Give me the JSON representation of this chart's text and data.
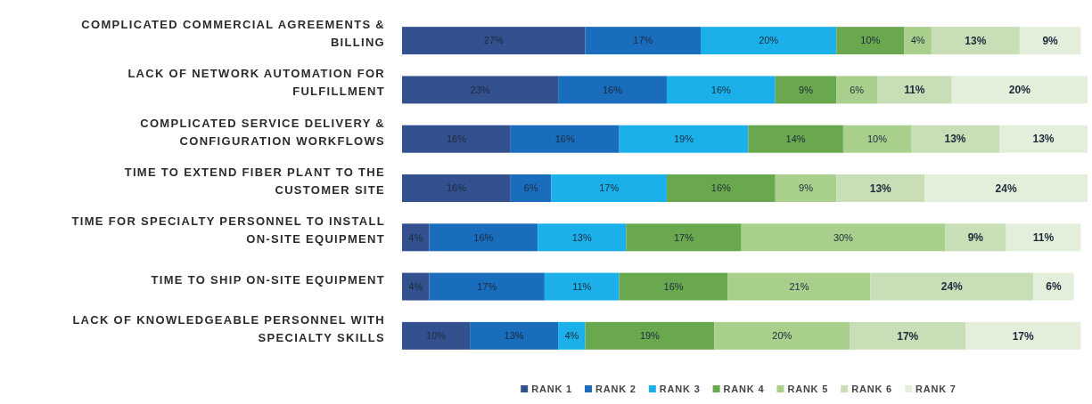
{
  "chart_data": {
    "type": "bar",
    "orientation": "horizontal",
    "stacked": true,
    "legend": "bottom",
    "categories": [
      "COMPLICATED COMMERCIAL AGREEMENTS & BILLING",
      "LACK OF NETWORK AUTOMATION FOR FULFILLMENT",
      "COMPLICATED SERVICE DELIVERY & CONFIGURATION WORKFLOWS",
      "TIME TO EXTEND FIBER PLANT TO THE CUSTOMER SITE",
      "TIME FOR SPECIALTY PERSONNEL TO INSTALL ON-SITE EQUIPMENT",
      "TIME TO SHIP ON-SITE EQUIPMENT",
      "LACK OF KNOWLEDGEABLE PERSONNEL WITH SPECIALTY SKILLS"
    ],
    "series": [
      {
        "name": "RANK 1",
        "color": "#34518f",
        "values": [
          27,
          23,
          16,
          16,
          4,
          4,
          10
        ],
        "value_labels": [
          "27%",
          "23%",
          "16%",
          "16%",
          "4%",
          "4%",
          "10%"
        ]
      },
      {
        "name": "RANK 2",
        "color": "#1a6dbd",
        "values": [
          17,
          16,
          16,
          6,
          16,
          17,
          13
        ],
        "value_labels": [
          "17%",
          "16%",
          "16%",
          "6%",
          "16%",
          "17%",
          "13%"
        ]
      },
      {
        "name": "RANK 3",
        "color": "#1cb0ea",
        "values": [
          20,
          16,
          19,
          17,
          13,
          11,
          4
        ],
        "value_labels": [
          "20%",
          "16%",
          "19%",
          "17%",
          "13%",
          "11%",
          "4%"
        ]
      },
      {
        "name": "RANK 4",
        "color": "#6aa84f",
        "values": [
          10,
          9,
          14,
          16,
          17,
          16,
          19
        ],
        "value_labels": [
          "10%",
          "9%",
          "14%",
          "16%",
          "17%",
          "16%",
          "19%"
        ]
      },
      {
        "name": "RANK 5",
        "color": "#a8cf8c",
        "values": [
          4,
          6,
          10,
          9,
          30,
          21,
          20
        ],
        "value_labels": [
          "4%",
          "6%",
          "10%",
          "9%",
          "30%",
          "21%",
          "20%"
        ]
      },
      {
        "name": "RANK 6",
        "color": "#c8deb6",
        "values": [
          13,
          11,
          13,
          13,
          9,
          24,
          17
        ],
        "value_labels": [
          "13%",
          "11%",
          "13%",
          "13%",
          "9%",
          "24%",
          "17%"
        ]
      },
      {
        "name": "RANK 7",
        "color": "#e3eedb",
        "values": [
          9,
          20,
          13,
          24,
          11,
          6,
          17
        ],
        "value_labels": [
          "9%",
          "20%",
          "13%",
          "24%",
          "11%",
          "6%",
          "17%"
        ]
      }
    ]
  }
}
